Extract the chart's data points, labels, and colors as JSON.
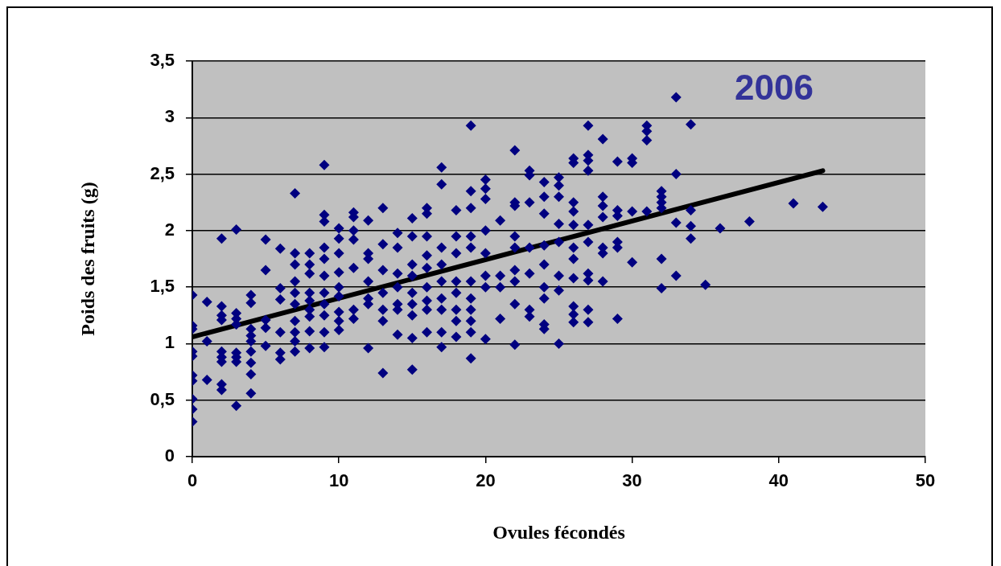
{
  "chart_data": {
    "type": "scatter",
    "xlabel": "Ovules fécondés",
    "ylabel": "Poids des fruits (g)",
    "annotations": [
      "2006"
    ],
    "xlim": [
      0,
      50
    ],
    "xticks": [
      0,
      10,
      20,
      30,
      40,
      50
    ],
    "ylim": [
      0,
      3.5
    ],
    "yticks": [
      0,
      {
        "value": 0.5,
        "label": "0,5"
      },
      1,
      {
        "value": 1.5,
        "label": "1,5"
      },
      2,
      {
        "value": 2.5,
        "label": "2,5"
      },
      3,
      {
        "value": 3.5,
        "label": "3,5"
      }
    ],
    "grid": "y",
    "legend": false,
    "marker": "diamond",
    "series": [
      {
        "color": "#000080",
        "x": [
          0,
          0,
          0,
          0,
          0,
          0,
          0,
          0,
          0,
          0,
          1,
          1,
          1,
          2,
          2,
          2,
          2,
          2,
          2,
          2,
          2,
          2,
          3,
          3,
          3,
          3,
          3,
          3,
          3,
          3,
          4,
          4,
          4,
          4,
          4,
          4,
          4,
          4,
          4,
          5,
          5,
          5,
          5,
          5,
          6,
          6,
          6,
          6,
          6,
          6,
          7,
          7,
          7,
          7,
          7,
          7,
          7,
          7,
          7,
          7,
          8,
          8,
          8,
          8,
          8,
          8,
          8,
          8,
          8,
          9,
          9,
          9,
          9,
          9,
          9,
          9,
          9,
          9,
          9,
          9,
          10,
          10,
          10,
          10,
          10,
          10,
          10,
          10,
          10,
          11,
          11,
          11,
          11,
          11,
          11,
          11,
          12,
          12,
          12,
          12,
          12,
          12,
          12,
          13,
          13,
          13,
          13,
          13,
          13,
          13,
          14,
          14,
          14,
          14,
          14,
          14,
          14,
          15,
          15,
          15,
          15,
          15,
          15,
          15,
          15,
          15,
          16,
          16,
          16,
          16,
          16,
          16,
          16,
          16,
          16,
          17,
          17,
          17,
          17,
          17,
          17,
          17,
          17,
          17,
          18,
          18,
          18,
          18,
          18,
          18,
          18,
          18,
          19,
          19,
          19,
          19,
          19,
          19,
          19,
          19,
          19,
          19,
          19,
          20,
          20,
          20,
          20,
          20,
          20,
          20,
          20,
          21,
          21,
          21,
          21,
          22,
          22,
          22,
          22,
          22,
          22,
          22,
          22,
          22,
          23,
          23,
          23,
          23,
          23,
          23,
          23,
          24,
          24,
          24,
          24,
          24,
          24,
          24,
          24,
          24,
          25,
          25,
          25,
          25,
          25,
          25,
          25,
          25,
          26,
          26,
          26,
          26,
          26,
          26,
          26,
          26,
          26,
          26,
          26,
          27,
          27,
          27,
          27,
          27,
          27,
          27,
          27,
          27,
          27,
          28,
          28,
          28,
          28,
          28,
          28,
          28,
          29,
          29,
          29,
          29,
          29,
          29,
          30,
          30,
          30,
          30,
          31,
          31,
          31,
          31,
          32,
          32,
          32,
          32,
          32,
          32,
          33,
          33,
          33,
          33,
          34,
          34,
          34,
          34,
          35,
          36,
          38,
          41,
          43
        ],
        "values": [
          1.43,
          1.16,
          1.13,
          0.93,
          0.89,
          0.72,
          0.67,
          0.51,
          0.42,
          0.31,
          1.37,
          1.02,
          0.68,
          1.93,
          1.33,
          1.25,
          1.21,
          0.93,
          0.88,
          0.84,
          0.64,
          0.59,
          2.01,
          1.27,
          1.22,
          1.17,
          0.92,
          0.88,
          0.84,
          0.45,
          1.43,
          1.36,
          1.13,
          1.07,
          1.02,
          0.93,
          0.83,
          0.73,
          0.56,
          1.92,
          1.65,
          1.21,
          1.14,
          0.98,
          1.84,
          1.49,
          1.39,
          1.1,
          0.92,
          0.86,
          2.33,
          1.8,
          1.7,
          1.55,
          1.45,
          1.35,
          1.2,
          1.1,
          1.02,
          0.93,
          1.8,
          1.7,
          1.62,
          1.45,
          1.38,
          1.3,
          1.24,
          1.11,
          0.96,
          2.58,
          2.14,
          2.08,
          1.85,
          1.75,
          1.6,
          1.45,
          1.35,
          1.25,
          1.1,
          0.97,
          2.02,
          1.93,
          1.8,
          1.63,
          1.5,
          1.42,
          1.28,
          1.2,
          1.12,
          2.16,
          2.12,
          2,
          1.92,
          1.67,
          1.3,
          1.22,
          2.09,
          1.8,
          1.75,
          1.55,
          1.4,
          1.35,
          0.96,
          2.2,
          1.88,
          1.65,
          1.45,
          1.3,
          1.2,
          0.74,
          1.98,
          1.85,
          1.62,
          1.5,
          1.35,
          1.3,
          1.08,
          2.11,
          1.95,
          1.7,
          1.6,
          1.45,
          1.35,
          1.25,
          1.05,
          0.77,
          2.2,
          2.15,
          1.95,
          1.78,
          1.67,
          1.5,
          1.38,
          1.3,
          1.1,
          2.56,
          2.41,
          1.85,
          1.7,
          1.55,
          1.4,
          1.3,
          1.1,
          0.97,
          2.18,
          1.95,
          1.8,
          1.55,
          1.45,
          1.3,
          1.2,
          1.06,
          2.93,
          2.35,
          2.2,
          1.95,
          1.85,
          1.55,
          1.4,
          1.3,
          1.2,
          1.1,
          0.87,
          2.45,
          2.37,
          2.28,
          2,
          1.8,
          1.6,
          1.5,
          1.04,
          2.09,
          1.6,
          1.5,
          1.22,
          2.71,
          2.25,
          2.22,
          1.95,
          1.85,
          1.65,
          1.55,
          1.35,
          0.99,
          2.53,
          2.49,
          2.25,
          1.85,
          1.62,
          1.3,
          1.24,
          2.43,
          2.3,
          2.15,
          1.87,
          1.7,
          1.5,
          1.4,
          1.17,
          1.13,
          2.47,
          2.4,
          2.3,
          2.06,
          1.9,
          1.6,
          1.47,
          1,
          2.64,
          2.6,
          2.25,
          2.17,
          2.05,
          1.85,
          1.75,
          1.58,
          1.33,
          1.26,
          1.19,
          2.93,
          2.67,
          2.62,
          2.53,
          2.05,
          1.9,
          1.62,
          1.56,
          1.3,
          1.19,
          2.81,
          2.3,
          2.22,
          2.12,
          1.85,
          1.8,
          1.55,
          2.61,
          2.18,
          2.13,
          1.9,
          1.85,
          1.22,
          2.64,
          2.6,
          2.17,
          1.72,
          2.93,
          2.88,
          2.8,
          2.17,
          2.35,
          2.3,
          2.25,
          2.2,
          1.75,
          1.49,
          3.18,
          2.5,
          2.07,
          1.6,
          2.94,
          2.18,
          2.04,
          1.93,
          1.52,
          2.02,
          2.08,
          2.24,
          2.21
        ]
      },
      {
        "type": "line",
        "color": "#000000",
        "marker": "none",
        "x": [
          0,
          43
        ],
        "values": [
          1.06,
          2.53
        ]
      }
    ]
  }
}
